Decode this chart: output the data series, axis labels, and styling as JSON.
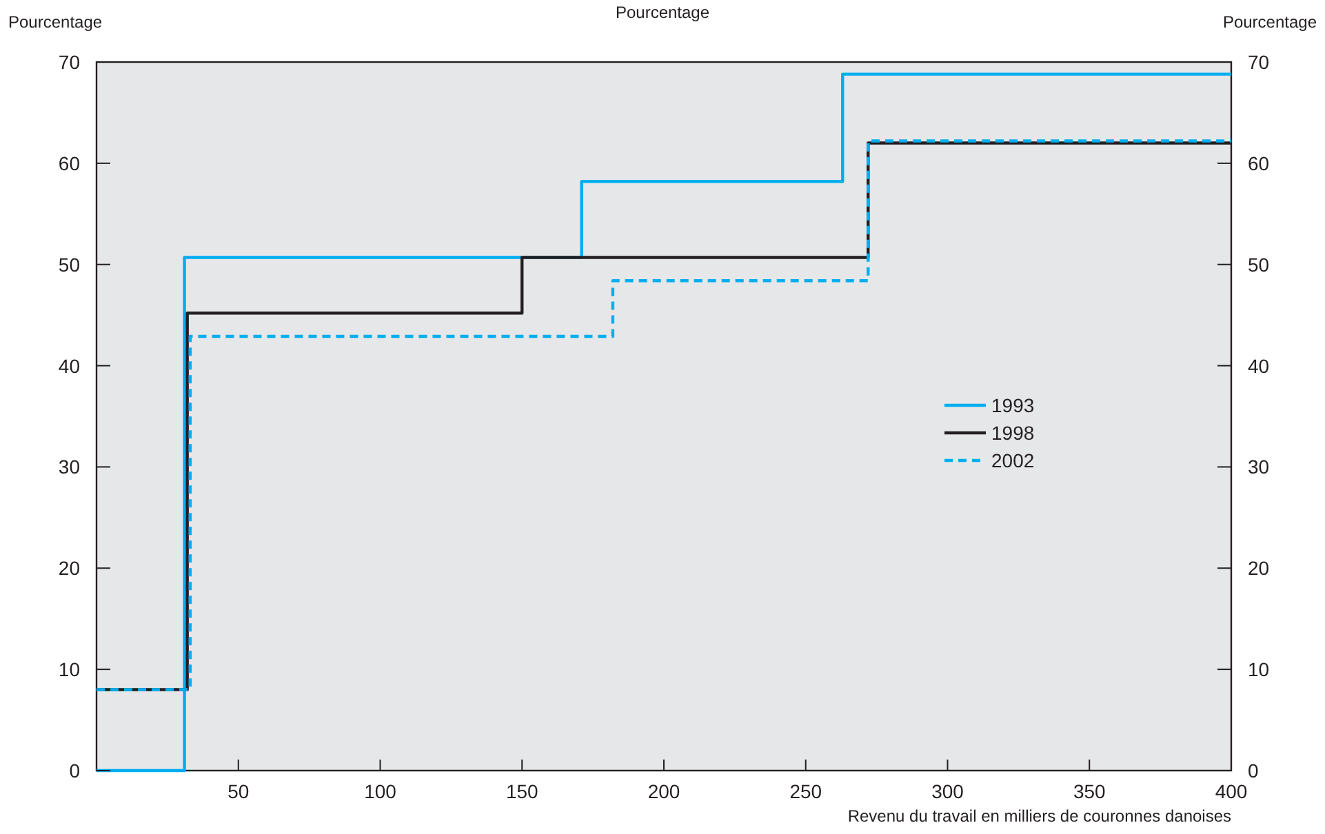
{
  "chart_data": {
    "type": "step",
    "title": "Pourcentage",
    "ylabel": "Pourcentage",
    "y2label": "Pourcentage",
    "xlabel": "Revenu du travail en milliers de couronnes danoises",
    "xlim": [
      0,
      400
    ],
    "xticks": [
      50,
      100,
      150,
      200,
      250,
      300,
      350,
      400
    ],
    "ylim": [
      0,
      70
    ],
    "yticks": [
      0,
      10,
      20,
      30,
      40,
      50,
      60,
      70
    ],
    "y2lim": [
      0,
      70
    ],
    "y2ticks": [
      0,
      10,
      20,
      30,
      40,
      50,
      60,
      70
    ],
    "legend": "right",
    "grid": false,
    "series": [
      {
        "name": "1993",
        "color": "#00aeef",
        "line_style": "solid",
        "x": [
          0,
          31,
          171,
          263,
          400
        ],
        "values": [
          0,
          50.7,
          58.2,
          68.8,
          68.8
        ]
      },
      {
        "name": "1998",
        "color": "#231f20",
        "line_style": "solid",
        "x": [
          0,
          32,
          150,
          272,
          400
        ],
        "values": [
          8,
          45.2,
          50.7,
          62,
          62
        ]
      },
      {
        "name": "2002",
        "color": "#00aeef",
        "line_style": "dashed",
        "x": [
          0,
          33,
          182,
          272,
          400
        ],
        "values": [
          8,
          42.9,
          48.4,
          62.2,
          62.2
        ]
      }
    ]
  }
}
